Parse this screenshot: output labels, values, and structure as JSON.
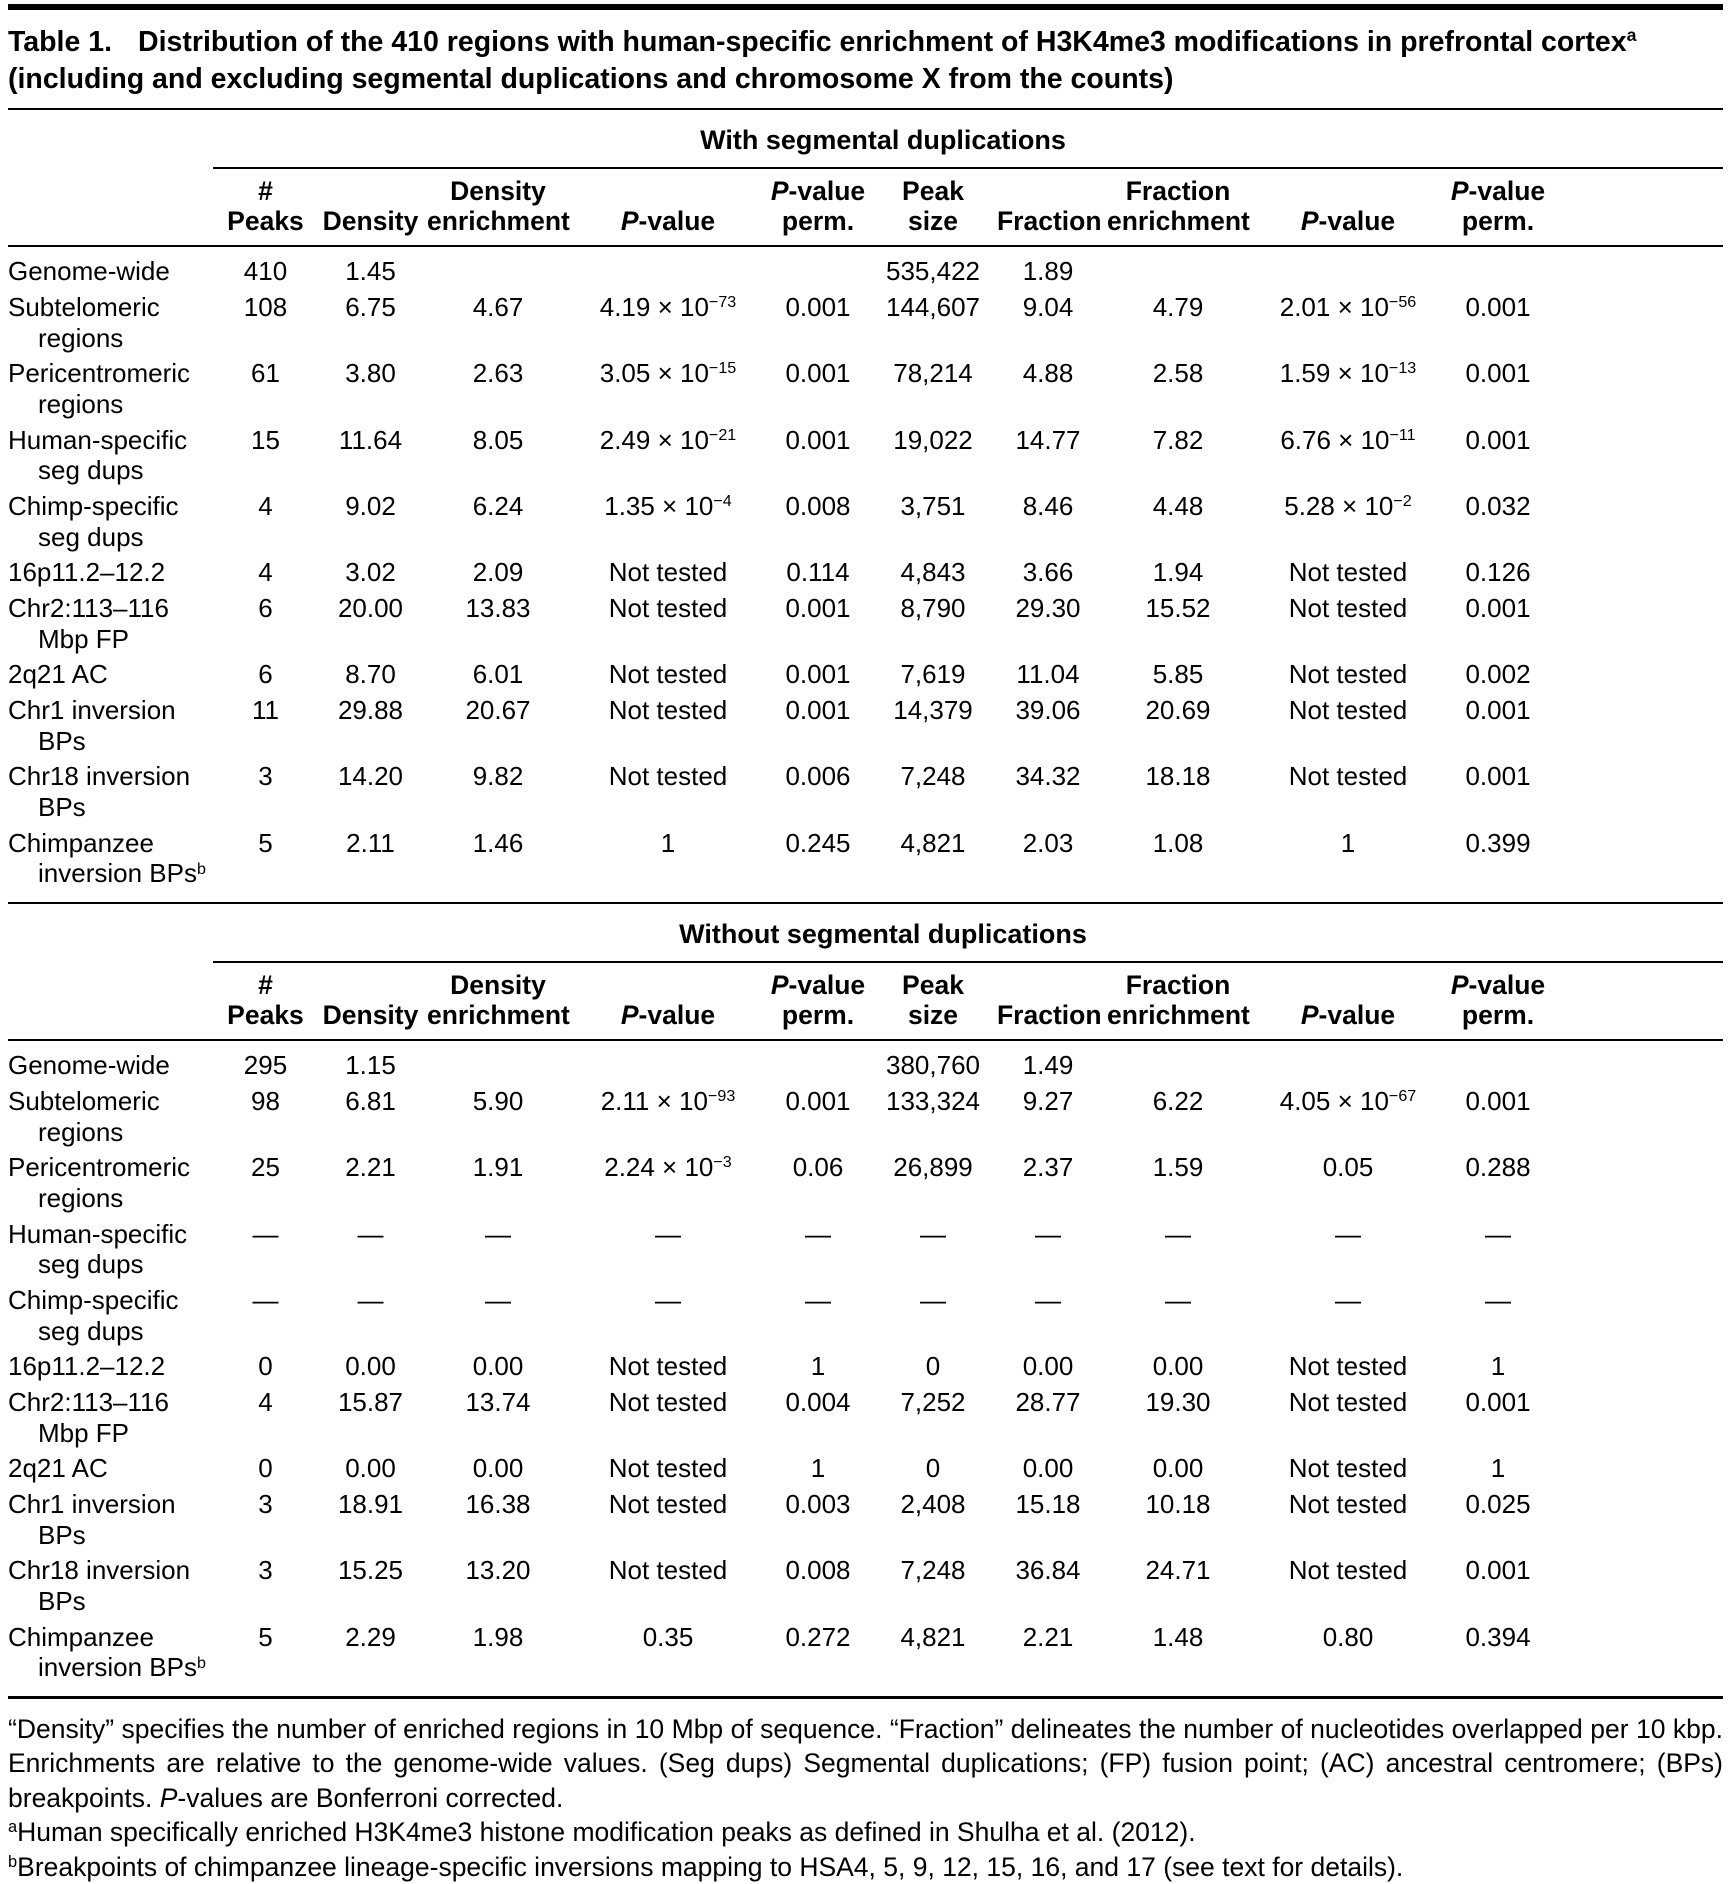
{
  "title": {
    "label": "Table 1.",
    "text": "Distribution of the 410 regions with human-specific enrichment of H3K4me3 modifications in prefrontal cortex^{a} (including and excluding segmental duplications and chromosome X from the counts)"
  },
  "table": {
    "column_headers": [
      "# Peaks",
      "Density",
      "Density enrichment",
      "*P*-value",
      "*P*-value perm.",
      "Peak size",
      "Fraction",
      "Fraction enrichment",
      "*P*-value",
      "*P*-value perm."
    ],
    "sections": [
      {
        "heading": "With segmental duplications",
        "rows": [
          {
            "label": "Genome-wide",
            "cells": [
              "410",
              "1.45",
              "",
              "",
              "",
              "535,422",
              "1.89",
              "",
              "",
              ""
            ]
          },
          {
            "label": "Subtelomeric regions",
            "cells": [
              "108",
              "6.75",
              "4.67",
              "4.19 × 10^{−73}",
              "0.001",
              "144,607",
              "9.04",
              "4.79",
              "2.01 × 10^{−56}",
              "0.001"
            ]
          },
          {
            "label": "Pericentromeric regions",
            "cells": [
              "61",
              "3.80",
              "2.63",
              "3.05 × 10^{−15}",
              "0.001",
              "78,214",
              "4.88",
              "2.58",
              "1.59 × 10^{−13}",
              "0.001"
            ]
          },
          {
            "label": "Human-specific seg dups",
            "cells": [
              "15",
              "11.64",
              "8.05",
              "2.49 × 10^{−21}",
              "0.001",
              "19,022",
              "14.77",
              "7.82",
              "6.76 × 10^{−11}",
              "0.001"
            ]
          },
          {
            "label": "Chimp-specific seg dups",
            "cells": [
              "4",
              "9.02",
              "6.24",
              "1.35 × 10^{−4}",
              "0.008",
              "3,751",
              "8.46",
              "4.48",
              "5.28 × 10^{−2}",
              "0.032"
            ]
          },
          {
            "label": "16p11.2–12.2",
            "cells": [
              "4",
              "3.02",
              "2.09",
              "Not tested",
              "0.114",
              "4,843",
              "3.66",
              "1.94",
              "Not tested",
              "0.126"
            ]
          },
          {
            "label": "Chr2:113–116 Mbp FP",
            "cells": [
              "6",
              "20.00",
              "13.83",
              "Not tested",
              "0.001",
              "8,790",
              "29.30",
              "15.52",
              "Not tested",
              "0.001"
            ]
          },
          {
            "label": "2q21 AC",
            "cells": [
              "6",
              "8.70",
              "6.01",
              "Not tested",
              "0.001",
              "7,619",
              "11.04",
              "5.85",
              "Not tested",
              "0.002"
            ]
          },
          {
            "label": "Chr1 inversion BPs",
            "cells": [
              "11",
              "29.88",
              "20.67",
              "Not tested",
              "0.001",
              "14,379",
              "39.06",
              "20.69",
              "Not tested",
              "0.001"
            ]
          },
          {
            "label": "Chr18 inversion BPs",
            "cells": [
              "3",
              "14.20",
              "9.82",
              "Not tested",
              "0.006",
              "7,248",
              "34.32",
              "18.18",
              "Not tested",
              "0.001"
            ]
          },
          {
            "label": "Chimpanzee inversion BPs^{b}",
            "cells": [
              "5",
              "2.11",
              "1.46",
              "1",
              "0.245",
              "4,821",
              "2.03",
              "1.08",
              "1",
              "0.399"
            ]
          }
        ]
      },
      {
        "heading": "Without segmental duplications",
        "rows": [
          {
            "label": "Genome-wide",
            "cells": [
              "295",
              "1.15",
              "",
              "",
              "",
              "380,760",
              "1.49",
              "",
              "",
              ""
            ]
          },
          {
            "label": "Subtelomeric regions",
            "cells": [
              "98",
              "6.81",
              "5.90",
              "2.11 × 10^{−93}",
              "0.001",
              "133,324",
              "9.27",
              "6.22",
              "4.05 × 10^{−67}",
              "0.001"
            ]
          },
          {
            "label": "Pericentromeric regions",
            "cells": [
              "25",
              "2.21",
              "1.91",
              "2.24 × 10^{−3}",
              "0.06",
              "26,899",
              "2.37",
              "1.59",
              "0.05",
              "0.288"
            ]
          },
          {
            "label": "Human-specific seg dups",
            "cells": [
              "—",
              "—",
              "—",
              "—",
              "—",
              "—",
              "—",
              "—",
              "—",
              "—"
            ]
          },
          {
            "label": "Chimp-specific seg dups",
            "cells": [
              "—",
              "—",
              "—",
              "—",
              "—",
              "—",
              "—",
              "—",
              "—",
              "—"
            ]
          },
          {
            "label": "16p11.2–12.2",
            "cells": [
              "0",
              "0.00",
              "0.00",
              "Not tested",
              "1",
              "0",
              "0.00",
              "0.00",
              "Not tested",
              "1"
            ]
          },
          {
            "label": "Chr2:113–116 Mbp FP",
            "cells": [
              "4",
              "15.87",
              "13.74",
              "Not tested",
              "0.004",
              "7,252",
              "28.77",
              "19.30",
              "Not tested",
              "0.001"
            ]
          },
          {
            "label": "2q21 AC",
            "cells": [
              "0",
              "0.00",
              "0.00",
              "Not tested",
              "1",
              "0",
              "0.00",
              "0.00",
              "Not tested",
              "1"
            ]
          },
          {
            "label": "Chr1 inversion BPs",
            "cells": [
              "3",
              "18.91",
              "16.38",
              "Not tested",
              "0.003",
              "2,408",
              "15.18",
              "10.18",
              "Not tested",
              "0.025"
            ]
          },
          {
            "label": "Chr18 inversion BPs",
            "cells": [
              "3",
              "15.25",
              "13.20",
              "Not tested",
              "0.008",
              "7,248",
              "36.84",
              "24.71",
              "Not tested",
              "0.001"
            ]
          },
          {
            "label": "Chimpanzee inversion BPs^{b}",
            "cells": [
              "5",
              "2.29",
              "1.98",
              "0.35",
              "0.272",
              "4,821",
              "2.21",
              "1.48",
              "0.80",
              "0.394"
            ]
          }
        ]
      }
    ]
  },
  "footnotes": [
    "“Density” specifies the number of enriched regions in 10 Mbp of sequence. “Fraction” delineates the number of nucleotides overlapped per 10 kbp. Enrichments are relative to the genome-wide values. (Seg dups) Segmental duplications; (FP) fusion point; (AC) ancestral centromere; (BPs) breakpoints. *P*-values are Bonferroni corrected.",
    "^{a}Human specifically enriched H3K4me3 histone modification peaks as defined in Shulha et al. (2012).",
    "^{b}Breakpoints of chimpanzee lineage-specific inversions mapping to HSA4, 5, 9, 12, 15, 16, and 17 (see text for details)."
  ]
}
